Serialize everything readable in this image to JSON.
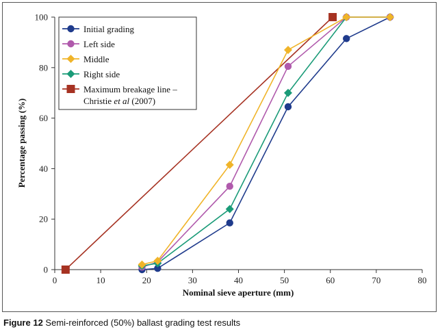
{
  "chart_data": {
    "type": "line",
    "title": "",
    "xlabel": "Nominal sieve aperture (mm)",
    "ylabel": "Percentage passing (%)",
    "xlim": [
      0,
      80
    ],
    "ylim": [
      0,
      100
    ],
    "xticks": [
      0,
      10,
      20,
      30,
      40,
      50,
      60,
      70,
      80
    ],
    "yticks": [
      0,
      20,
      40,
      60,
      80,
      100
    ],
    "grid": false,
    "legend_position": "top-left",
    "series": [
      {
        "name": "Initial grading",
        "color": "#1f3b8c",
        "marker": "circle",
        "x": [
          19,
          22.4,
          38.1,
          50.8,
          63.5,
          73
        ],
        "y": [
          0,
          0.5,
          18.5,
          64.5,
          91.5,
          100
        ]
      },
      {
        "name": "Left side",
        "color": "#b05aac",
        "marker": "circle",
        "x": [
          19,
          22.4,
          38.1,
          50.8,
          63.5,
          73
        ],
        "y": [
          1,
          3,
          33,
          80.5,
          100,
          100
        ]
      },
      {
        "name": "Middle",
        "color": "#f0b429",
        "marker": "diamond",
        "x": [
          19,
          22.4,
          38.1,
          50.8,
          63.5,
          73
        ],
        "y": [
          2,
          3.5,
          41.5,
          87,
          100,
          100
        ]
      },
      {
        "name": "Right side",
        "color": "#1a9b78",
        "marker": "diamond",
        "x": [
          19,
          22.4,
          38.1,
          50.8,
          63.5,
          73
        ],
        "y": [
          1.5,
          2.5,
          24,
          70,
          100,
          100
        ]
      },
      {
        "name": "Maximum breakage line – Christie et al (2007)",
        "color": "#a63222",
        "marker": "square",
        "x": [
          2.36,
          60.5
        ],
        "y": [
          0,
          100
        ]
      }
    ],
    "legend": {
      "line1": "Initial grading",
      "line2": "Left side",
      "line3": "Middle",
      "line4": "Right side",
      "line5a": "Maximum breakage line –",
      "line5b_pre": "Christie ",
      "line5b_it": "et al",
      "line5b_post": " (2007)"
    }
  },
  "caption": {
    "label": "Figure 12",
    "text": "Semi-reinforced (50%) ballast grading test results"
  }
}
